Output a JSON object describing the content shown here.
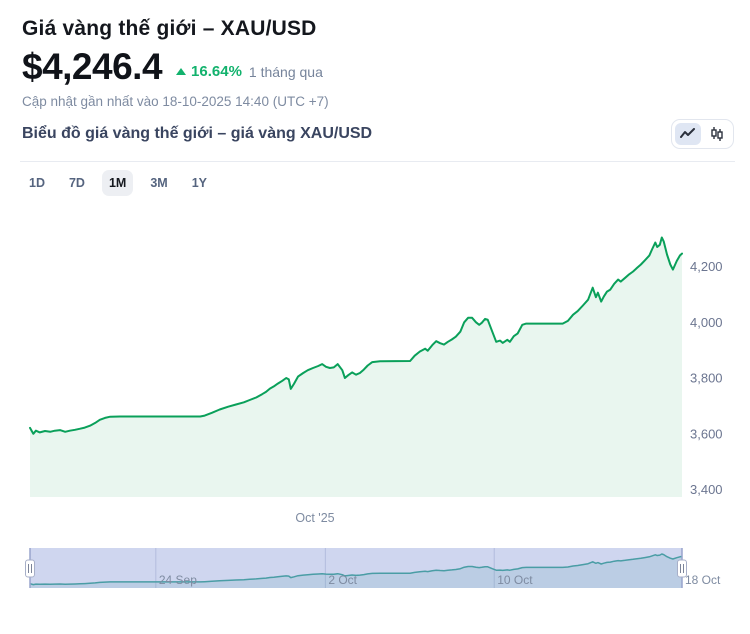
{
  "header": {
    "title": "Giá vàng thế giới – XAU/USD",
    "price": "$4,246.4",
    "change_pct": "16.64%",
    "change_period": "1 tháng qua",
    "updated": "Cập nhật gần nhất vào 18-10-2025 14:40 (UTC +7)"
  },
  "chart_header": {
    "subtitle": "Biểu đồ giá vàng thế giới – giá vàng XAU/USD",
    "toggle": {
      "options": [
        "line-chart",
        "candlestick-chart"
      ],
      "selected": "line-chart"
    }
  },
  "ranges": {
    "options": [
      "1D",
      "7D",
      "1M",
      "3M",
      "1Y"
    ],
    "selected": "1M"
  },
  "colors": {
    "line_green": "#0aa05a",
    "area_fill": "#e9f6ef",
    "pct_green": "#12b26d",
    "muted_text": "#7e8ba1",
    "axis_text": "#6b7590",
    "navigator_bg": "#cfd6ef",
    "navigator_grid": "#b3bcdd",
    "navigator_edge": "#98a4cc",
    "navigator_line": "#4a9da5"
  },
  "chart_data": {
    "type": "area",
    "title": "Giá vàng XAU/USD – 1M",
    "xlabel": "Oct '25",
    "ylabel": "",
    "x_range_dates": [
      "18 Sep 2025",
      "18 Oct 2025"
    ],
    "ylim": [
      3372,
      4440
    ],
    "grid": false,
    "legend": "none",
    "y_ticks": [
      {
        "label": "4,200",
        "value": 4200
      },
      {
        "label": "4,000",
        "value": 4000
      },
      {
        "label": "3,800",
        "value": 3800
      },
      {
        "label": "3,600",
        "value": 3600
      },
      {
        "label": "3,400",
        "value": 3400
      }
    ],
    "series": [
      {
        "name": "XAU/USD",
        "points": [
          [
            0,
            3621
          ],
          [
            0.5,
            3600
          ],
          [
            0.9,
            3611
          ],
          [
            1.5,
            3605
          ],
          [
            2.3,
            3610
          ],
          [
            3.1,
            3607
          ],
          [
            3.8,
            3611
          ],
          [
            4.6,
            3613
          ],
          [
            5.4,
            3607
          ],
          [
            6.1,
            3611
          ],
          [
            6.9,
            3614
          ],
          [
            7.7,
            3618
          ],
          [
            8.4,
            3622
          ],
          [
            9.2,
            3629
          ],
          [
            10,
            3639
          ],
          [
            10.7,
            3650
          ],
          [
            11.5,
            3657
          ],
          [
            12.3,
            3661
          ],
          [
            13.8,
            3662
          ],
          [
            26.1,
            3662
          ],
          [
            26.8,
            3665
          ],
          [
            27.9,
            3675
          ],
          [
            29.1,
            3687
          ],
          [
            30.4,
            3697
          ],
          [
            31.6,
            3705
          ],
          [
            32.8,
            3713
          ],
          [
            33.7,
            3721
          ],
          [
            34.7,
            3730
          ],
          [
            35.6,
            3742
          ],
          [
            36.2,
            3750
          ],
          [
            36.8,
            3762
          ],
          [
            37.4,
            3770
          ],
          [
            38,
            3780
          ],
          [
            38.7,
            3790
          ],
          [
            39.3,
            3800
          ],
          [
            39.7,
            3795
          ],
          [
            40,
            3761
          ],
          [
            40.5,
            3780
          ],
          [
            41.1,
            3805
          ],
          [
            41.9,
            3818
          ],
          [
            42.6,
            3828
          ],
          [
            43.4,
            3836
          ],
          [
            44.2,
            3843
          ],
          [
            44.8,
            3850
          ],
          [
            45.4,
            3840
          ],
          [
            46,
            3836
          ],
          [
            46.6,
            3838
          ],
          [
            47.2,
            3850
          ],
          [
            47.9,
            3828
          ],
          [
            48.3,
            3800
          ],
          [
            48.8,
            3810
          ],
          [
            49.4,
            3820
          ],
          [
            50,
            3812
          ],
          [
            50.6,
            3818
          ],
          [
            51.2,
            3830
          ],
          [
            51.8,
            3845
          ],
          [
            52.5,
            3857
          ],
          [
            53.7,
            3860
          ],
          [
            58.3,
            3861
          ],
          [
            59,
            3880
          ],
          [
            59.8,
            3895
          ],
          [
            60.6,
            3905
          ],
          [
            61,
            3898
          ],
          [
            61.7,
            3918
          ],
          [
            62.3,
            3932
          ],
          [
            62.9,
            3925
          ],
          [
            63.5,
            3920
          ],
          [
            64.1,
            3930
          ],
          [
            64.7,
            3938
          ],
          [
            65.3,
            3948
          ],
          [
            66,
            3966
          ],
          [
            66.6,
            4000
          ],
          [
            67.2,
            4016
          ],
          [
            67.8,
            4016
          ],
          [
            68.4,
            4000
          ],
          [
            68.9,
            3991
          ],
          [
            69.3,
            3998
          ],
          [
            69.8,
            4012
          ],
          [
            70.2,
            4009
          ],
          [
            70.9,
            3966
          ],
          [
            71.5,
            3930
          ],
          [
            72.1,
            3934
          ],
          [
            72.5,
            3926
          ],
          [
            73.2,
            3937
          ],
          [
            73.6,
            3930
          ],
          [
            74.2,
            3950
          ],
          [
            74.8,
            3960
          ],
          [
            75.5,
            3991
          ],
          [
            76.1,
            3995
          ],
          [
            81.7,
            3995
          ],
          [
            82.5,
            4005
          ],
          [
            83.3,
            4027
          ],
          [
            84,
            4040
          ],
          [
            84.8,
            4060
          ],
          [
            85.6,
            4081
          ],
          [
            86.3,
            4124
          ],
          [
            86.8,
            4090
          ],
          [
            87.1,
            4106
          ],
          [
            87.6,
            4074
          ],
          [
            88,
            4092
          ],
          [
            88.5,
            4110
          ],
          [
            89,
            4117
          ],
          [
            89.6,
            4138
          ],
          [
            90.2,
            4153
          ],
          [
            90.6,
            4146
          ],
          [
            91.3,
            4160
          ],
          [
            91.9,
            4172
          ],
          [
            92.5,
            4182
          ],
          [
            93.1,
            4195
          ],
          [
            93.7,
            4207
          ],
          [
            94.3,
            4222
          ],
          [
            95,
            4240
          ],
          [
            95.4,
            4261
          ],
          [
            95.9,
            4286
          ],
          [
            96.2,
            4270
          ],
          [
            96.6,
            4278
          ],
          [
            96.9,
            4304
          ],
          [
            97.2,
            4290
          ],
          [
            97.7,
            4243
          ],
          [
            98.2,
            4207
          ],
          [
            98.6,
            4189
          ],
          [
            99.2,
            4220
          ],
          [
            99.7,
            4240
          ],
          [
            100,
            4246.4
          ]
        ]
      }
    ],
    "navigator": {
      "labels": [
        {
          "text": "24 Sep",
          "pos": 19.3
        },
        {
          "text": "2 Oct",
          "pos": 45.3
        },
        {
          "text": "10 Oct",
          "pos": 71.2
        },
        {
          "text": "18 Oct",
          "pos": 100
        }
      ],
      "gridline_pos": [
        19.3,
        45.3,
        71.2
      ],
      "selected_range": [
        0,
        100
      ]
    }
  }
}
